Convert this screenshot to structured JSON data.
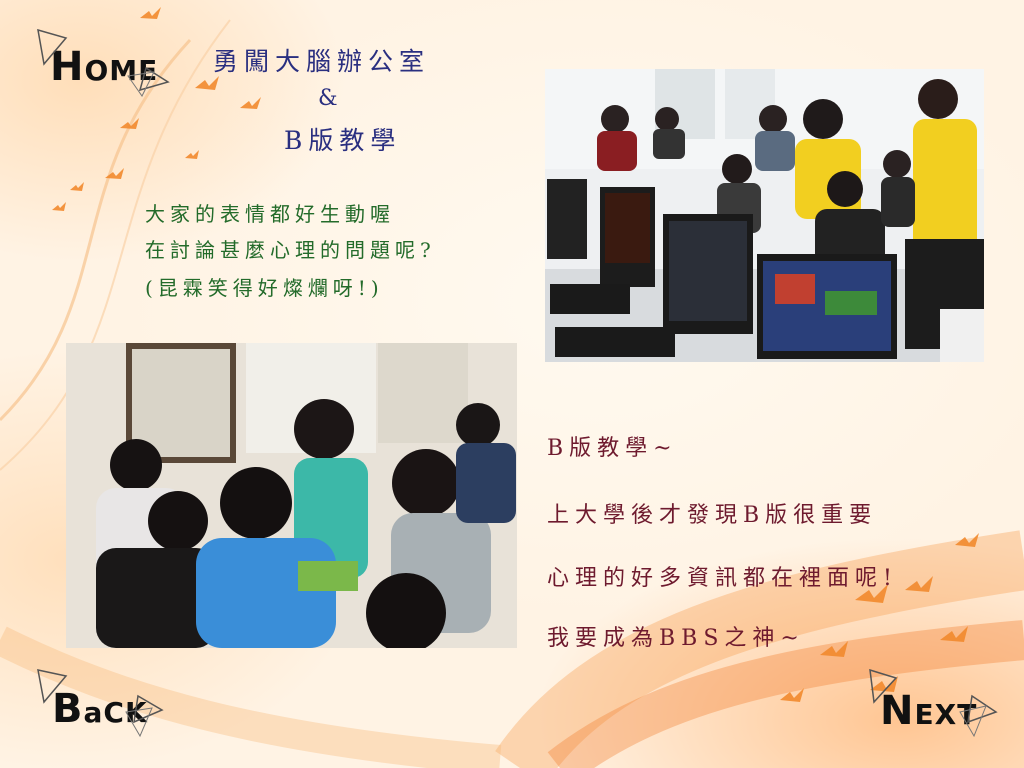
{
  "nav": {
    "home": {
      "first": "H",
      "rest": "OME"
    },
    "back": {
      "first": "B",
      "rest": "aCK"
    },
    "next": {
      "first": "N",
      "rest": "EXT"
    }
  },
  "title": {
    "line1": "勇闖大腦辦公室",
    "line2": "&",
    "line3": "B版教學"
  },
  "caption_top": {
    "line1": "大家的表情都好生動喔",
    "line2": "在討論甚麼心理的問題呢?",
    "line3": "(昆霖笑得好燦爛呀!)"
  },
  "caption_bottom": {
    "line1": "B版教學~",
    "line2": "上大學後才發現B版很重要",
    "line3": "心理的好多資訊都在裡面呢!",
    "line4": "我要成為BBS之神~"
  },
  "colors": {
    "title": "#2a2f80",
    "caption_top": "#236b2a",
    "caption_bottom": "#6e1a2e",
    "nav": "#111111",
    "accent_orange": "#f28a2e"
  },
  "icons": {
    "nav_decoration": "triangle-outline-icon",
    "birds": "flying-bird-icon"
  }
}
